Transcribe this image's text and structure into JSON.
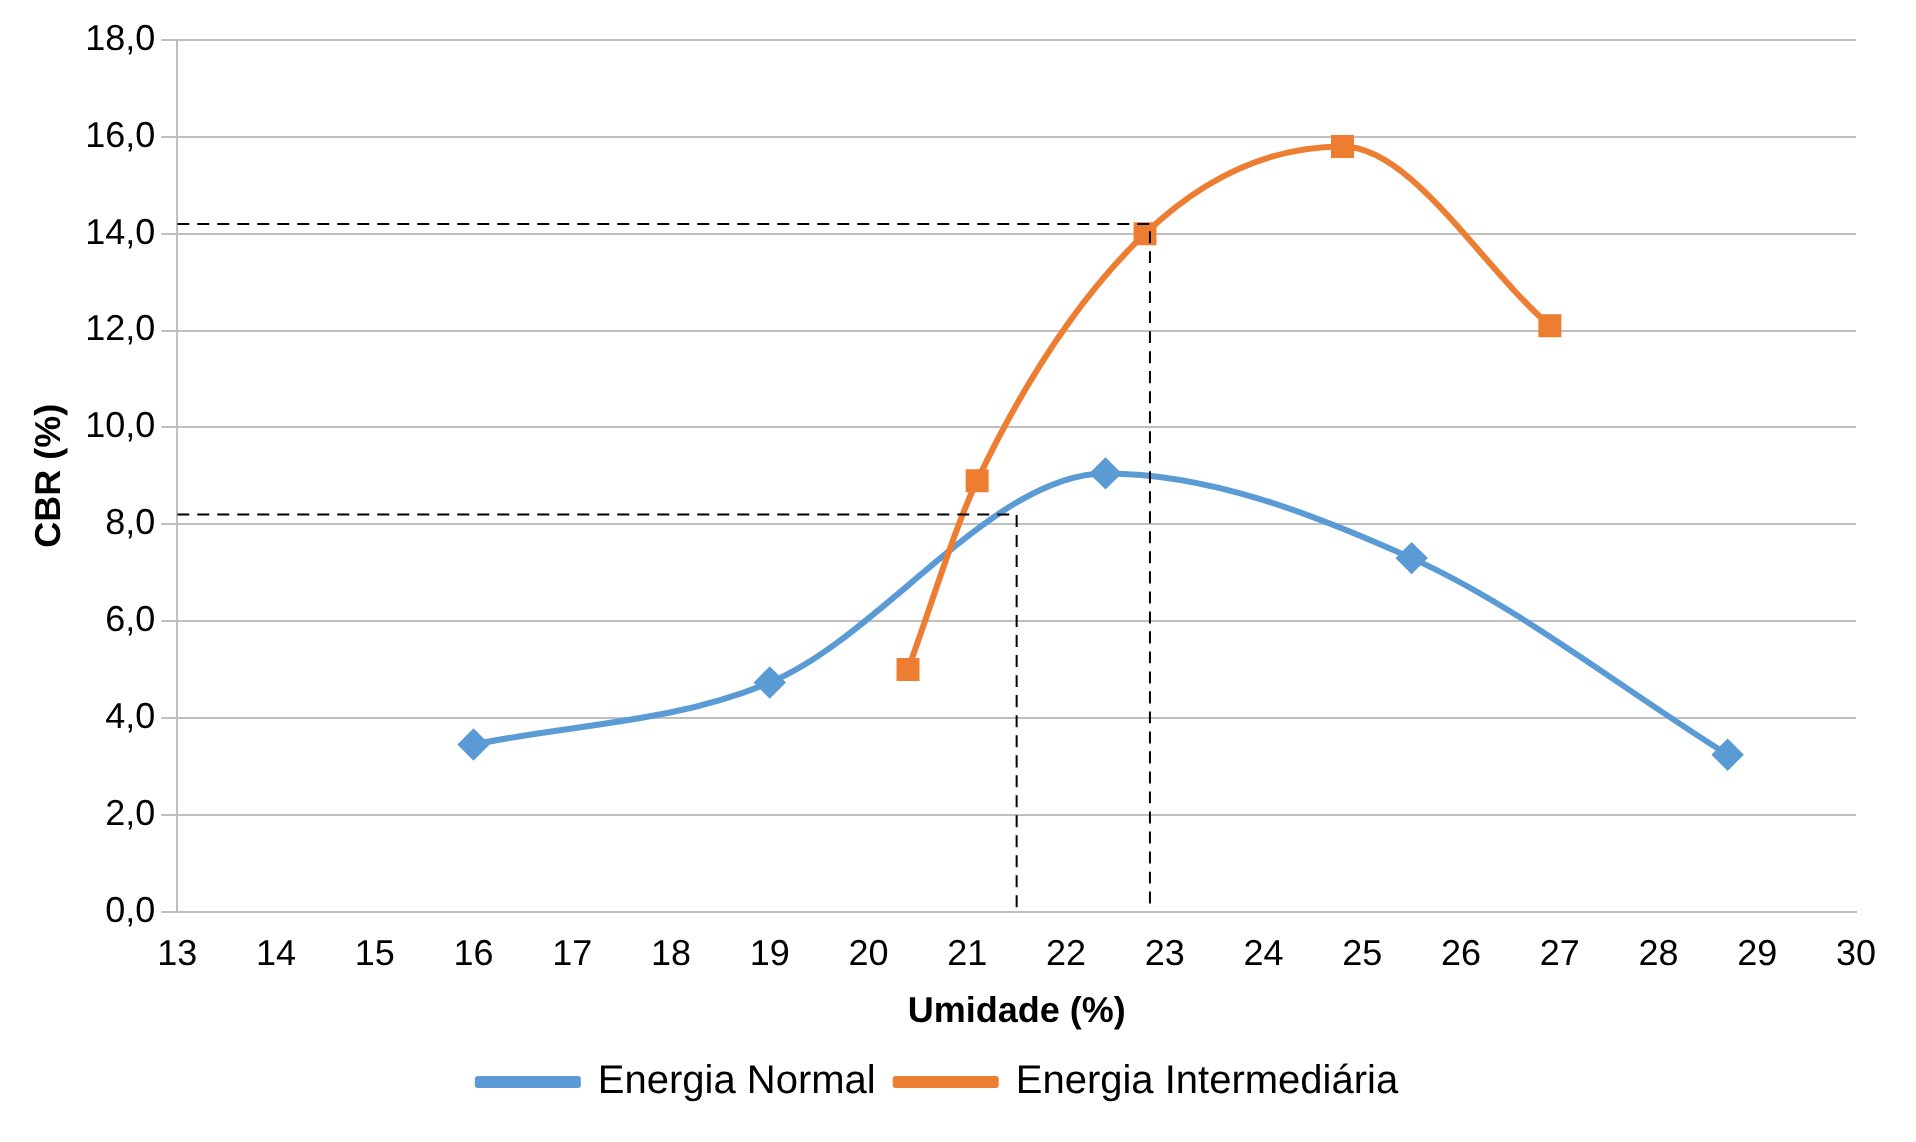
{
  "chart_data": {
    "type": "line",
    "xlabel": "Umidade (%)",
    "ylabel": "CBR (%)",
    "xlim": [
      13,
      30
    ],
    "xticks": [
      13,
      14,
      15,
      16,
      17,
      18,
      19,
      20,
      21,
      22,
      23,
      24,
      25,
      26,
      27,
      28,
      29,
      30
    ],
    "ylim": [
      0,
      18
    ],
    "yticks": [
      {
        "value": 0,
        "label": "0,0"
      },
      {
        "value": 2,
        "label": "2,0"
      },
      {
        "value": 4,
        "label": "4,0"
      },
      {
        "value": 6,
        "label": "6,0"
      },
      {
        "value": 8,
        "label": "8,0"
      },
      {
        "value": 10,
        "label": "10,0"
      },
      {
        "value": 12,
        "label": "12,0"
      },
      {
        "value": 14,
        "label": "14,0"
      },
      {
        "value": 16,
        "label": "16,0"
      },
      {
        "value": 18,
        "label": "18,0"
      }
    ],
    "grid": "y",
    "legend": "bottom",
    "series": [
      {
        "name": "Energia Normal",
        "color": "#5b9bd5",
        "marker": "diamond",
        "x": [
          16,
          19,
          22.4,
          25.5,
          28.7
        ],
        "values": [
          3.45,
          4.73,
          9.05,
          7.3,
          3.24
        ]
      },
      {
        "name": "Energia Intermediária",
        "color": "#ed7d31",
        "marker": "square",
        "x": [
          20.4,
          21.1,
          22.8,
          24.8,
          26.9
        ],
        "values": [
          5.0,
          8.9,
          14.0,
          15.8,
          12.1
        ]
      },
      {
        "color": "#000000",
        "marker": "none",
        "line_style": "dashed",
        "x": [
          13,
          21.5,
          21.5
        ],
        "values": [
          8.2,
          8.2,
          0
        ]
      },
      {
        "color": "#000000",
        "marker": "none",
        "line_style": "dashed",
        "x": [
          13,
          22.85,
          22.85
        ],
        "values": [
          14.2,
          14.2,
          0
        ]
      }
    ]
  }
}
